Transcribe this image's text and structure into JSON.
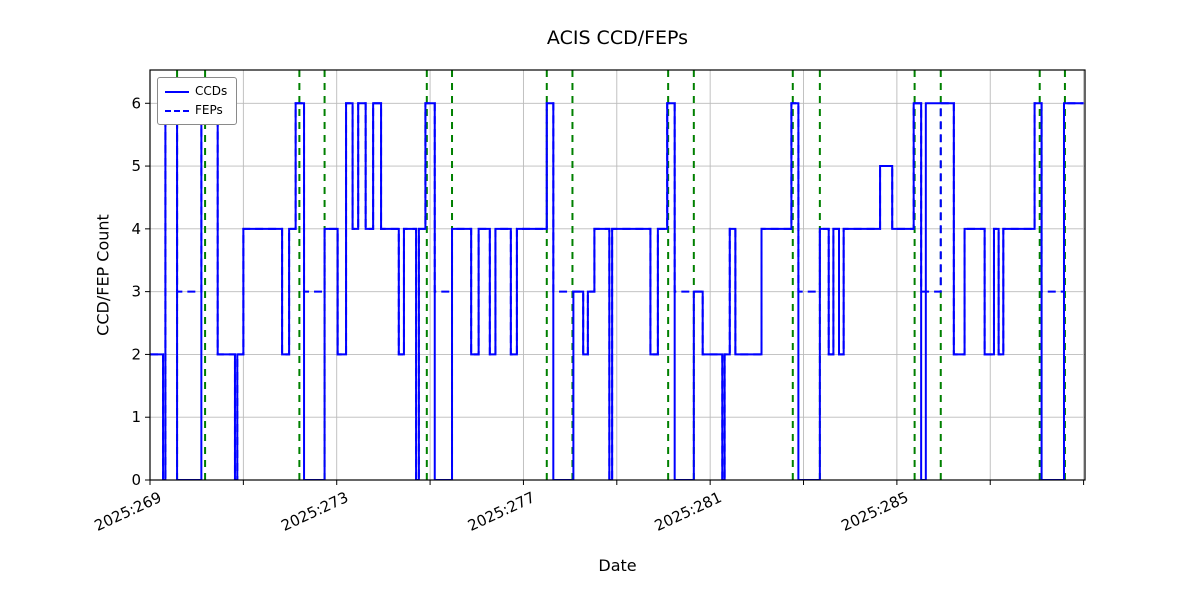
{
  "chart_data": {
    "type": "line",
    "title": "ACIS CCD/FEPs",
    "xlabel": "Date",
    "ylabel": "CCD/FEP Count",
    "x_unit": "2025 day-of-year",
    "xlim": [
      269,
      289.03
    ],
    "ylim": [
      0,
      6.53
    ],
    "grid": true,
    "x_grid_step": 2,
    "legend_position": "upper left",
    "x_ticks": [
      {
        "day": 269,
        "label": "2025:269"
      },
      {
        "day": 273,
        "label": "2025:273"
      },
      {
        "day": 277,
        "label": "2025:277"
      },
      {
        "day": 281,
        "label": "2025:281"
      },
      {
        "day": 285,
        "label": "2025:285"
      }
    ],
    "y_ticks": [
      {
        "value": 0,
        "label": "0"
      },
      {
        "value": 1,
        "label": "1"
      },
      {
        "value": 2,
        "label": "2"
      },
      {
        "value": 3,
        "label": "3"
      },
      {
        "value": 4,
        "label": "4"
      },
      {
        "value": 5,
        "label": "5"
      },
      {
        "value": 6,
        "label": "6"
      }
    ],
    "series": [
      {
        "name": "CCDs",
        "color": "#0000ff",
        "style": "solid",
        "draw": "step",
        "points": [
          [
            269.0,
            2
          ],
          [
            269.28,
            0
          ],
          [
            269.33,
            6
          ],
          [
            269.58,
            0
          ],
          [
            270.1,
            6
          ],
          [
            270.45,
            2
          ],
          [
            270.82,
            0
          ],
          [
            270.87,
            2
          ],
          [
            271.0,
            4
          ],
          [
            271.83,
            2
          ],
          [
            271.98,
            4
          ],
          [
            272.12,
            6
          ],
          [
            272.3,
            0
          ],
          [
            272.74,
            4
          ],
          [
            273.02,
            2
          ],
          [
            273.2,
            6
          ],
          [
            273.34,
            4
          ],
          [
            273.46,
            6
          ],
          [
            273.62,
            4
          ],
          [
            273.78,
            6
          ],
          [
            273.95,
            4
          ],
          [
            274.33,
            2
          ],
          [
            274.44,
            4
          ],
          [
            274.7,
            0
          ],
          [
            274.76,
            4
          ],
          [
            274.9,
            6
          ],
          [
            275.1,
            0
          ],
          [
            275.47,
            4
          ],
          [
            275.88,
            2
          ],
          [
            276.04,
            4
          ],
          [
            276.28,
            2
          ],
          [
            276.4,
            4
          ],
          [
            276.73,
            2
          ],
          [
            276.86,
            4
          ],
          [
            277.5,
            6
          ],
          [
            277.64,
            0
          ],
          [
            278.07,
            3
          ],
          [
            278.28,
            2
          ],
          [
            278.38,
            3
          ],
          [
            278.52,
            4
          ],
          [
            278.84,
            0
          ],
          [
            278.9,
            4
          ],
          [
            279.72,
            2
          ],
          [
            279.88,
            4
          ],
          [
            280.08,
            6
          ],
          [
            280.24,
            0
          ],
          [
            280.65,
            3
          ],
          [
            280.84,
            2
          ],
          [
            281.26,
            0
          ],
          [
            281.31,
            2
          ],
          [
            281.42,
            4
          ],
          [
            281.54,
            2
          ],
          [
            282.1,
            4
          ],
          [
            282.74,
            6
          ],
          [
            282.89,
            0
          ],
          [
            283.35,
            4
          ],
          [
            283.54,
            2
          ],
          [
            283.64,
            4
          ],
          [
            283.76,
            2
          ],
          [
            283.86,
            4
          ],
          [
            284.64,
            5
          ],
          [
            284.9,
            4
          ],
          [
            285.36,
            6
          ],
          [
            285.52,
            0
          ],
          [
            285.62,
            6
          ],
          [
            286.22,
            2
          ],
          [
            286.45,
            4
          ],
          [
            286.88,
            2
          ],
          [
            287.08,
            4
          ],
          [
            287.18,
            2
          ],
          [
            287.28,
            4
          ],
          [
            287.95,
            6
          ],
          [
            288.1,
            0
          ],
          [
            288.58,
            6
          ],
          [
            289.0,
            6
          ]
        ]
      },
      {
        "name": "FEPs",
        "color": "#0000ff",
        "style": "dashed",
        "draw": "step",
        "points": [
          [
            269.0,
            2
          ],
          [
            269.28,
            0
          ],
          [
            269.33,
            6
          ],
          [
            269.58,
            3
          ],
          [
            270.1,
            6
          ],
          [
            270.45,
            2
          ],
          [
            270.82,
            0
          ],
          [
            270.87,
            2
          ],
          [
            271.0,
            4
          ],
          [
            271.83,
            2
          ],
          [
            271.98,
            4
          ],
          [
            272.12,
            6
          ],
          [
            272.3,
            3
          ],
          [
            272.74,
            4
          ],
          [
            273.02,
            2
          ],
          [
            273.2,
            6
          ],
          [
            273.34,
            4
          ],
          [
            273.46,
            6
          ],
          [
            273.62,
            4
          ],
          [
            273.78,
            6
          ],
          [
            273.95,
            4
          ],
          [
            274.33,
            2
          ],
          [
            274.44,
            4
          ],
          [
            274.7,
            0
          ],
          [
            274.76,
            4
          ],
          [
            274.9,
            6
          ],
          [
            275.1,
            3
          ],
          [
            275.47,
            4
          ],
          [
            275.88,
            2
          ],
          [
            276.04,
            4
          ],
          [
            276.28,
            2
          ],
          [
            276.4,
            4
          ],
          [
            276.73,
            2
          ],
          [
            276.86,
            4
          ],
          [
            277.5,
            6
          ],
          [
            277.64,
            3
          ],
          [
            278.28,
            2
          ],
          [
            278.38,
            3
          ],
          [
            278.52,
            4
          ],
          [
            278.84,
            0
          ],
          [
            278.9,
            4
          ],
          [
            279.72,
            2
          ],
          [
            279.88,
            4
          ],
          [
            280.08,
            6
          ],
          [
            280.24,
            3
          ],
          [
            280.84,
            2
          ],
          [
            281.26,
            0
          ],
          [
            281.31,
            2
          ],
          [
            281.42,
            4
          ],
          [
            281.54,
            2
          ],
          [
            282.1,
            4
          ],
          [
            282.74,
            6
          ],
          [
            282.89,
            3
          ],
          [
            283.35,
            4
          ],
          [
            283.54,
            2
          ],
          [
            283.64,
            4
          ],
          [
            283.76,
            2
          ],
          [
            283.86,
            4
          ],
          [
            284.64,
            5
          ],
          [
            284.9,
            4
          ],
          [
            285.36,
            6
          ],
          [
            285.52,
            3
          ],
          [
            285.94,
            6
          ],
          [
            286.22,
            2
          ],
          [
            286.45,
            4
          ],
          [
            286.88,
            2
          ],
          [
            287.08,
            4
          ],
          [
            287.18,
            2
          ],
          [
            287.28,
            4
          ],
          [
            287.95,
            6
          ],
          [
            288.1,
            3
          ],
          [
            288.58,
            6
          ],
          [
            289.0,
            6
          ]
        ]
      }
    ],
    "vlines": {
      "color": "#008000",
      "style": "dashed",
      "x": [
        269.58,
        270.18,
        272.2,
        272.74,
        274.93,
        275.47,
        277.5,
        278.05,
        280.1,
        280.65,
        282.77,
        283.35,
        285.38,
        285.94,
        288.06,
        288.6
      ]
    },
    "colors": {
      "grid": "#bbbbbb",
      "frame": "#000000",
      "text": "#000000",
      "background": "#ffffff"
    }
  }
}
